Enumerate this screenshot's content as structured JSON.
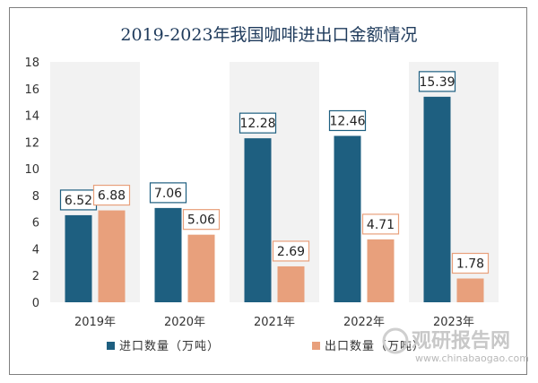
{
  "chart_data": {
    "type": "bar",
    "title": "2019-2023年我国咖啡进出口金额情况",
    "categories": [
      "2019年",
      "2020年",
      "2021年",
      "2022年",
      "2023年"
    ],
    "series": [
      {
        "name": "进口数量（万吨）",
        "color": "#1e5f80",
        "values": [
          6.52,
          7.06,
          12.28,
          12.46,
          15.39
        ]
      },
      {
        "name": "出口数量（万吨）",
        "color": "#e8a07c",
        "values": [
          6.88,
          5.06,
          2.69,
          4.71,
          1.78
        ]
      }
    ],
    "ylim": [
      0,
      18
    ],
    "yticks": [
      0,
      2,
      4,
      6,
      8,
      10,
      12,
      14,
      16,
      18
    ],
    "xlabel": "",
    "ylabel": "",
    "grid": false,
    "legend": "bottom"
  },
  "watermark": {
    "brand": "观研报告网",
    "url": "www.chinabaogao.com"
  }
}
